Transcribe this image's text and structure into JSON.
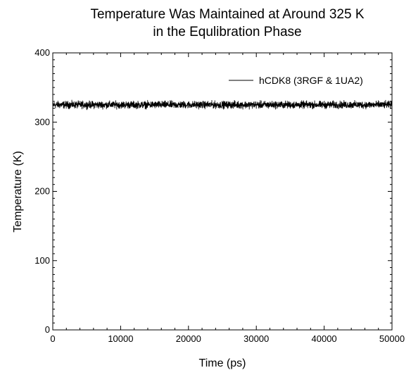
{
  "chart_data": {
    "type": "line",
    "title": [
      "Temperature Was Maintained at Around 325 K",
      "in the Equlibration Phase"
    ],
    "xlabel": "Time (ps)",
    "ylabel": "Temperature (K)",
    "xlim": [
      0,
      50000
    ],
    "ylim": [
      0,
      400
    ],
    "x_ticks": [
      0,
      10000,
      20000,
      30000,
      40000,
      50000
    ],
    "x_tick_labels": [
      "0",
      "10000",
      "20000",
      "30000",
      "40000",
      "50000"
    ],
    "y_ticks": [
      0,
      100,
      200,
      300,
      400
    ],
    "y_tick_labels": [
      "0",
      "100",
      "200",
      "300",
      "400"
    ],
    "grid": false,
    "legend_placement": "top-right",
    "series": [
      {
        "name": "hCDK8 (3RGF & 1UA2)",
        "color": "#000000",
        "mean": 325,
        "fluctuation_range": [
          317,
          333
        ],
        "x_range": [
          0,
          50000
        ]
      }
    ]
  }
}
